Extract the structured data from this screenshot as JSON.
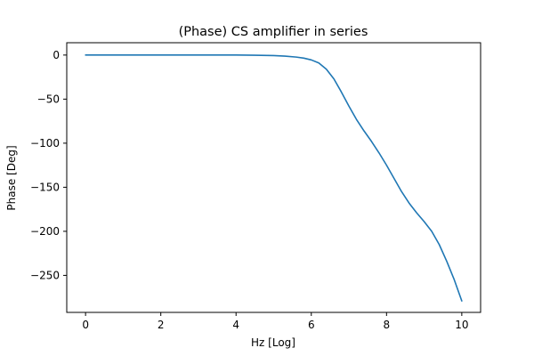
{
  "chart_data": {
    "type": "line",
    "title": "(Phase) CS amplifier in series",
    "xlabel": "Hz [Log]",
    "ylabel": "Phase [Deg]",
    "xlim": [
      -0.5,
      10.5
    ],
    "ylim": [
      -292,
      14
    ],
    "xticks": [
      0,
      2,
      4,
      6,
      8,
      10
    ],
    "xtick_labels": [
      "0",
      "2",
      "4",
      "6",
      "8",
      "10"
    ],
    "yticks": [
      0,
      -50,
      -100,
      -150,
      -200,
      -250
    ],
    "ytick_labels": [
      "0",
      "−50",
      "−100",
      "−150",
      "−200",
      "−250"
    ],
    "grid": false,
    "colors": {
      "line": "#1f77b4",
      "axes": "#000000",
      "background": "#ffffff"
    },
    "series": [
      {
        "x": [
          0,
          1,
          2,
          3,
          4,
          4.5,
          5,
          5.3,
          5.6,
          5.8,
          6.0,
          6.2,
          6.4,
          6.6,
          6.8,
          7.0,
          7.2,
          7.4,
          7.6,
          7.8,
          8.0,
          8.2,
          8.4,
          8.6,
          8.8,
          9.0,
          9.2,
          9.4,
          9.6,
          9.8,
          10.0
        ],
        "y": [
          0,
          0,
          0,
          0,
          0,
          -0.2,
          -0.6,
          -1.2,
          -2.3,
          -3.5,
          -5.5,
          -9,
          -16,
          -27,
          -42,
          -58,
          -73,
          -86,
          -98,
          -111,
          -125,
          -140,
          -155,
          -168,
          -179,
          -189,
          -200,
          -215,
          -234,
          -255,
          -279
        ]
      }
    ]
  }
}
